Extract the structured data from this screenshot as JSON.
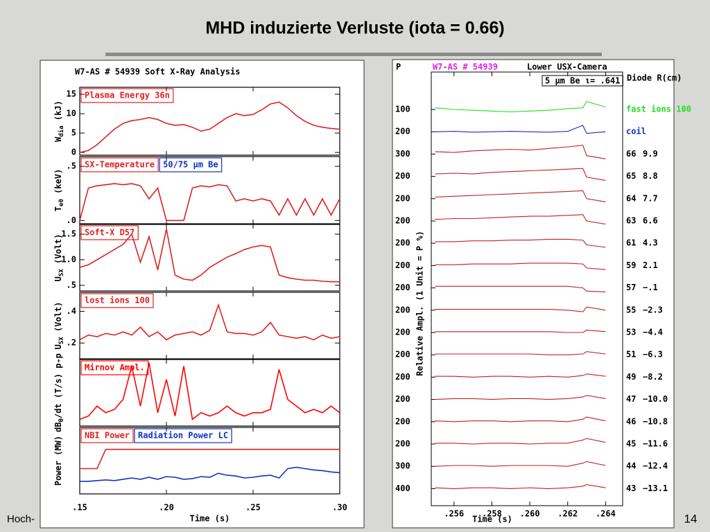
{
  "slide": {
    "title": "MHD induzierte Verluste (iota = 0.66)",
    "footer": "Hoch-",
    "page_number": "14"
  },
  "chart_data": [
    {
      "type": "line",
      "title": "W7-AS # 54939   Soft X-Ray Analysis",
      "ylabel": [
        "W",
        "dia",
        " (kJ)"
      ],
      "ylim": [
        -0.7,
        16.8
      ],
      "yticks": [
        0,
        5,
        10,
        15
      ],
      "xlim": [
        0.15,
        0.3
      ],
      "x": [
        0.15,
        0.155,
        0.16,
        0.165,
        0.17,
        0.175,
        0.18,
        0.185,
        0.19,
        0.195,
        0.2,
        0.205,
        0.21,
        0.215,
        0.22,
        0.225,
        0.23,
        0.235,
        0.24,
        0.245,
        0.25,
        0.255,
        0.26,
        0.265,
        0.27,
        0.275,
        0.28,
        0.285,
        0.29,
        0.295,
        0.3
      ],
      "series": [
        {
          "name": "Plasma Energy 36n",
          "color": "#e02020",
          "values": [
            0,
            0.5,
            2,
            4,
            6,
            7.5,
            8.2,
            8.5,
            9,
            8.5,
            7.5,
            7,
            7.2,
            6.5,
            5.5,
            6,
            7.5,
            9,
            10,
            9.5,
            9.8,
            11,
            12.5,
            13,
            11.5,
            9.5,
            8,
            7,
            6.5,
            6.2,
            6
          ]
        }
      ]
    },
    {
      "type": "line",
      "ylabel": [
        "T",
        "e0",
        " (keV)"
      ],
      "ylim": [
        -0.03,
        0.59
      ],
      "yticks": [
        {
          "value": 0,
          "label": ".0"
        },
        {
          "value": 0.5,
          "label": ".5"
        }
      ],
      "xlim": [
        0.15,
        0.3
      ],
      "annotation": "50/75  μm Be",
      "x": [
        0.15,
        0.155,
        0.16,
        0.165,
        0.17,
        0.175,
        0.18,
        0.185,
        0.19,
        0.195,
        0.2,
        0.205,
        0.21,
        0.215,
        0.22,
        0.225,
        0.23,
        0.235,
        0.24,
        0.245,
        0.25,
        0.255,
        0.26,
        0.265,
        0.27,
        0.275,
        0.28,
        0.285,
        0.29,
        0.295,
        0.3
      ],
      "series": [
        {
          "name": "SX-Temperature",
          "color": "#e02020",
          "values": [
            0,
            0.3,
            0.32,
            0.33,
            0.34,
            0.33,
            0.34,
            0.32,
            0.2,
            0.3,
            0,
            0,
            0,
            0.3,
            0.32,
            0.31,
            0.33,
            0.32,
            0.18,
            0.2,
            0.18,
            0.2,
            0.18,
            0.05,
            0.2,
            0.05,
            0.2,
            0.05,
            0.2,
            0.05,
            0.2
          ]
        }
      ]
    },
    {
      "type": "line",
      "ylabel": [
        "U",
        "SX",
        " (Volt)"
      ],
      "ylim": [
        0.39,
        1.69
      ],
      "yticks": [
        {
          "value": 0.5,
          "label": ".5"
        },
        {
          "value": 1,
          "label": "1.0"
        },
        1.5
      ],
      "xlim": [
        0.15,
        0.3
      ],
      "x": [
        0.15,
        0.155,
        0.16,
        0.165,
        0.17,
        0.175,
        0.18,
        0.185,
        0.19,
        0.195,
        0.2,
        0.205,
        0.21,
        0.215,
        0.22,
        0.225,
        0.23,
        0.235,
        0.24,
        0.245,
        0.25,
        0.255,
        0.26,
        0.265,
        0.27,
        0.275,
        0.28,
        0.285,
        0.29,
        0.295,
        0.3
      ],
      "series": [
        {
          "name": "Soft-X D57",
          "color": "#e02020",
          "values": [
            0.85,
            0.9,
            1,
            1.1,
            1.2,
            1.3,
            1.5,
            0.95,
            1.45,
            0.8,
            1.6,
            0.7,
            0.62,
            0.6,
            0.7,
            0.85,
            0.95,
            1.05,
            1.12,
            1.2,
            1.25,
            1.28,
            1.25,
            0.7,
            0.65,
            0.62,
            0.6,
            0.6,
            0.58,
            0.57,
            0.57
          ]
        }
      ]
    },
    {
      "type": "line",
      "ylabel": [
        "U",
        "SX",
        " (Volt)"
      ],
      "ylim": [
        0.1,
        0.52
      ],
      "yticks": [
        {
          "value": 0.2,
          "label": ".2"
        },
        {
          "value": 0.4,
          "label": ".4"
        }
      ],
      "xlim": [
        0.15,
        0.3
      ],
      "x": [
        0.15,
        0.155,
        0.16,
        0.165,
        0.17,
        0.175,
        0.18,
        0.185,
        0.19,
        0.195,
        0.2,
        0.205,
        0.21,
        0.215,
        0.22,
        0.225,
        0.23,
        0.235,
        0.24,
        0.245,
        0.25,
        0.255,
        0.26,
        0.265,
        0.27,
        0.275,
        0.28,
        0.285,
        0.29,
        0.295,
        0.3
      ],
      "series": [
        {
          "name": "lost ions 100",
          "color": "#e02020",
          "values": [
            0.22,
            0.25,
            0.24,
            0.26,
            0.25,
            0.27,
            0.25,
            0.3,
            0.24,
            0.27,
            0.22,
            0.25,
            0.26,
            0.27,
            0.25,
            0.28,
            0.44,
            0.27,
            0.26,
            0.26,
            0.25,
            0.27,
            0.33,
            0.25,
            0.24,
            0.23,
            0.24,
            0.22,
            0.25,
            0.23,
            0.24
          ]
        }
      ]
    },
    {
      "type": "line",
      "ylabel": [
        "dB",
        "θ",
        "/dt (T/s) p-p"
      ],
      "ylim": [
        0,
        1
      ],
      "yticks": [],
      "xlim": [
        0.15,
        0.3
      ],
      "x": [
        0.15,
        0.155,
        0.16,
        0.165,
        0.17,
        0.175,
        0.18,
        0.185,
        0.19,
        0.195,
        0.2,
        0.205,
        0.21,
        0.215,
        0.22,
        0.225,
        0.23,
        0.235,
        0.24,
        0.245,
        0.25,
        0.255,
        0.26,
        0.265,
        0.27,
        0.275,
        0.28,
        0.285,
        0.29,
        0.295,
        0.3
      ],
      "series": [
        {
          "name": "Mirnov Ampl.",
          "color": "#ff0000",
          "values": [
            0.1,
            0.15,
            0.3,
            0.2,
            0.25,
            0.4,
            0.9,
            0.3,
            0.95,
            0.2,
            0.7,
            0.15,
            0.9,
            0.1,
            0.2,
            0.15,
            0.2,
            0.3,
            0.2,
            0.15,
            0.2,
            0.2,
            0.25,
            0.85,
            0.4,
            0.3,
            0.2,
            0.25,
            0.2,
            0.3,
            0.2
          ]
        }
      ]
    },
    {
      "type": "line",
      "ylabel": [
        "Power (MW)"
      ],
      "ylim": [
        0,
        1
      ],
      "yticks": [],
      "xlim": [
        0.15,
        0.3
      ],
      "xlabel": "Time (s)",
      "xticks": [
        {
          "value": 0.15,
          "label": ".15"
        },
        {
          "value": 0.2,
          "label": ".20"
        },
        {
          "value": 0.25,
          "label": ".25"
        },
        {
          "value": 0.3,
          "label": ".30"
        }
      ],
      "x": [
        0.15,
        0.155,
        0.16,
        0.165,
        0.17,
        0.175,
        0.18,
        0.185,
        0.19,
        0.195,
        0.2,
        0.205,
        0.21,
        0.215,
        0.22,
        0.225,
        0.23,
        0.235,
        0.24,
        0.245,
        0.25,
        0.255,
        0.26,
        0.265,
        0.27,
        0.275,
        0.28,
        0.285,
        0.29,
        0.295,
        0.3
      ],
      "series": [
        {
          "name": "NBI Power",
          "color": "#e02020",
          "values": [
            0.38,
            0.38,
            0.38,
            0.67,
            0.67,
            0.67,
            0.67,
            0.67,
            0.67,
            0.67,
            0.67,
            0.67,
            0.67,
            0.67,
            0.67,
            0.67,
            0.67,
            0.67,
            0.67,
            0.67,
            0.67,
            0.67,
            0.67,
            0.67,
            0.67,
            0.67,
            0.67,
            0.67,
            0.67,
            0.67,
            0.67
          ]
        },
        {
          "name": "Radiation Power LC",
          "color": "#1030c0",
          "values": [
            0.19,
            0.19,
            0.2,
            0.21,
            0.2,
            0.22,
            0.24,
            0.22,
            0.25,
            0.22,
            0.26,
            0.25,
            0.22,
            0.23,
            0.26,
            0.25,
            0.31,
            0.28,
            0.27,
            0.24,
            0.25,
            0.27,
            0.28,
            0.24,
            0.38,
            0.4,
            0.38,
            0.36,
            0.35,
            0.33,
            0.32
          ]
        }
      ]
    },
    {
      "type": "line",
      "corner_label": "P",
      "title": "W7-AS # 54939",
      "subtitle": "Lower USX-Camera",
      "annotation": "5  μm Be ι= .641",
      "column_header": "Diode R(cm)",
      "ylabel": "Relative Ampl. (1 Unit = P %)",
      "xlabel": "Time (s)",
      "xlim": [
        0.2548,
        0.2649
      ],
      "ylim": [
        -1.3,
        1.3
      ],
      "xticks": [
        {
          "value": 0.256,
          "label": ".256"
        },
        {
          "value": 0.258,
          "label": ".258"
        },
        {
          "value": 0.26,
          "label": ".260"
        },
        {
          "value": 0.262,
          "label": ".262"
        },
        {
          "value": 0.264,
          "label": ".264"
        }
      ],
      "x": [
        0.255,
        0.256,
        0.257,
        0.258,
        0.259,
        0.26,
        0.261,
        0.262,
        0.2628,
        0.263,
        0.264
      ],
      "series": [
        {
          "name": "fast ions 100",
          "scale": 100,
          "color": "#22dd22",
          "values": [
            0.2,
            0,
            -0.1,
            -0.2,
            -0.3,
            -0.2,
            -0.1,
            0.1,
            0.2,
            1,
            0.3
          ]
        },
        {
          "name": "coil",
          "scale": 200,
          "color": "#1030c0",
          "values": [
            0,
            0.05,
            -0.05,
            0,
            0.05,
            0,
            -0.05,
            0.05,
            0.8,
            -0.2,
            0
          ]
        },
        {
          "name": "66",
          "radius": "9.9",
          "scale": 300,
          "color": "#c02020",
          "values": [
            0.3,
            0.2,
            0.4,
            0.5,
            0.6,
            0.5,
            0.7,
            0.9,
            1.1,
            -0.2,
            -0.6
          ]
        },
        {
          "name": "65",
          "radius": "8.8",
          "scale": 200,
          "color": "#c02020",
          "values": [
            0.3,
            0.4,
            0.3,
            0.5,
            0.6,
            0.7,
            0.8,
            0.9,
            1,
            -0.1,
            -0.5
          ]
        },
        {
          "name": "64",
          "radius": "7.7",
          "scale": 200,
          "color": "#c02020",
          "values": [
            0.2,
            0.3,
            0.4,
            0.5,
            0.6,
            0.7,
            0.8,
            0.9,
            1,
            0,
            -0.4
          ]
        },
        {
          "name": "63",
          "radius": "6.6",
          "scale": 200,
          "color": "#c02020",
          "values": [
            0.2,
            0.3,
            0.3,
            0.4,
            0.5,
            0.6,
            0.6,
            0.7,
            0.8,
            0,
            -0.4
          ]
        },
        {
          "name": "61",
          "radius": "4.3",
          "scale": 200,
          "color": "#c02020",
          "values": [
            0.2,
            0.2,
            0.3,
            0.3,
            0.4,
            0.4,
            0.5,
            0.5,
            0.4,
            -0.2,
            -0.5
          ]
        },
        {
          "name": "59",
          "radius": "2.1",
          "scale": 200,
          "color": "#c02020",
          "values": [
            0.1,
            0.1,
            0.2,
            0.2,
            0.2,
            0.3,
            0.3,
            0.3,
            0.2,
            -0.3,
            -0.5
          ]
        },
        {
          "name": "57",
          "radius": "−.1",
          "scale": 200,
          "color": "#c02020",
          "values": [
            0.2,
            0.2,
            0.2,
            0.2,
            0.2,
            0.2,
            0.2,
            0.2,
            0,
            -0.4,
            -0.5
          ]
        },
        {
          "name": "55",
          "radius": "−2.3",
          "scale": 200,
          "color": "#c02020",
          "values": [
            0.1,
            0.1,
            0.1,
            0.1,
            0.1,
            0.1,
            0.1,
            0,
            -0.2,
            0.4,
            0
          ]
        },
        {
          "name": "53",
          "radius": "−4.4",
          "scale": 200,
          "color": "#c02020",
          "values": [
            0.1,
            0.1,
            0.1,
            0.1,
            0.1,
            0.1,
            0.1,
            0,
            0,
            0.3,
            0.1
          ]
        },
        {
          "name": "51",
          "radius": "−6.3",
          "scale": 200,
          "color": "#c02020",
          "values": [
            0.1,
            0.1,
            0.1,
            0.1,
            0.1,
            0.1,
            0,
            0,
            0.1,
            0.4,
            0.1
          ]
        },
        {
          "name": "49",
          "radius": "−8.2",
          "scale": 200,
          "color": "#c02020",
          "values": [
            0.1,
            0.1,
            0,
            0.1,
            0.1,
            0,
            0.1,
            0,
            0.2,
            0.4,
            0.1
          ]
        },
        {
          "name": "47",
          "radius": "−10.0",
          "scale": 200,
          "color": "#c02020",
          "values": [
            0,
            0.1,
            0.1,
            0,
            0.1,
            0.1,
            0,
            0.1,
            0.3,
            0.5,
            0.1
          ]
        },
        {
          "name": "46",
          "radius": "−10.8",
          "scale": 200,
          "color": "#c02020",
          "values": [
            0.1,
            0,
            0.1,
            0.1,
            0,
            0.1,
            0.1,
            0,
            0.3,
            0.6,
            0.1
          ]
        },
        {
          "name": "45",
          "radius": "−11.6",
          "scale": 200,
          "color": "#c02020",
          "values": [
            0.1,
            0.1,
            0,
            0.1,
            0.1,
            0,
            0.1,
            0.1,
            0.5,
            0.7,
            0.2
          ]
        },
        {
          "name": "44",
          "radius": "−12.4",
          "scale": 300,
          "color": "#c02020",
          "values": [
            0,
            0.1,
            0.1,
            0,
            0.1,
            0.1,
            0.1,
            0,
            0.4,
            0.6,
            0.1
          ]
        },
        {
          "name": "43",
          "radius": "−13.1",
          "scale": 400,
          "color": "#c02020",
          "values": [
            0.1,
            0,
            0.1,
            0.1,
            0,
            0.1,
            0,
            0.1,
            0.3,
            0.5,
            0.1
          ]
        }
      ]
    }
  ]
}
